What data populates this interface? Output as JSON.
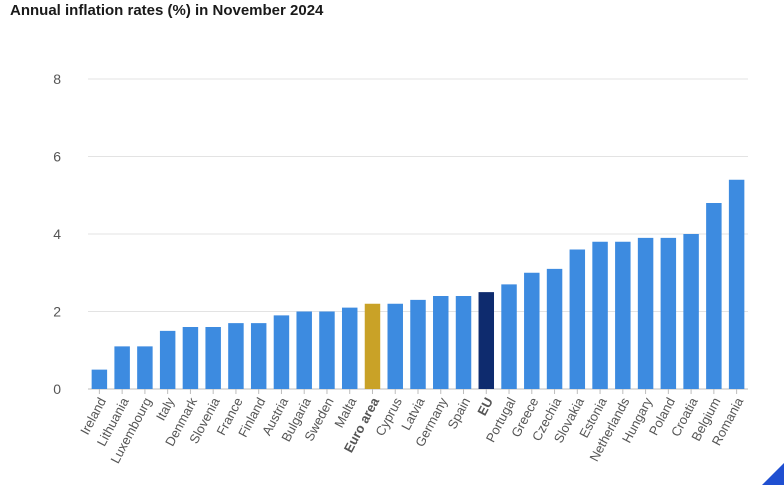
{
  "chart_data": {
    "type": "bar",
    "title": "Annual inflation rates (%) in November 2024",
    "categories": [
      "Ireland",
      "Lithuania",
      "Luxembourg",
      "Italy",
      "Denmark",
      "Slovenia",
      "France",
      "Finland",
      "Austria",
      "Bulgaria",
      "Sweden",
      "Malta",
      "Euro area",
      "Cyprus",
      "Latvia",
      "Germany",
      "Spain",
      "EU",
      "Portugal",
      "Greece",
      "Czechia",
      "Slovakia",
      "Estonia",
      "Netherlands",
      "Hungary",
      "Poland",
      "Croatia",
      "Belgium",
      "Romania"
    ],
    "values": [
      0.5,
      1.1,
      1.1,
      1.5,
      1.6,
      1.6,
      1.7,
      1.7,
      1.9,
      2.0,
      2.0,
      2.1,
      2.2,
      2.2,
      2.3,
      2.4,
      2.4,
      2.5,
      2.7,
      3.0,
      3.1,
      3.6,
      3.8,
      3.8,
      3.9,
      3.9,
      4.0,
      4.8,
      5.4
    ],
    "highlight": {
      "Euro area": "#c9a227",
      "EU": "#0e2b6e"
    },
    "bold_labels": [
      "Euro area",
      "EU"
    ],
    "bar_color": "#3d8be0",
    "ylim": [
      0,
      8
    ],
    "yticks": [
      0,
      2,
      4,
      6,
      8
    ],
    "xlabel": "",
    "ylabel": "",
    "grid": true,
    "legend": "none"
  }
}
